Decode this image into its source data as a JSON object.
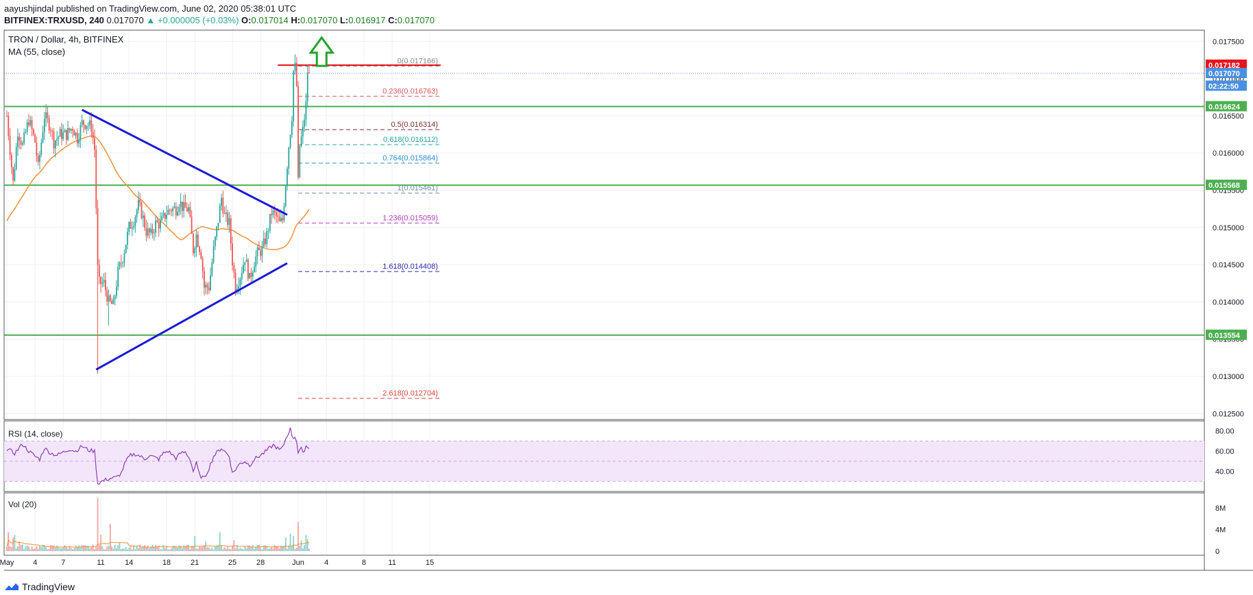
{
  "header": {
    "publisher_line": "aayushjindal published on TradingView.com, June 02, 2020 05:38:01 UTC",
    "symbol": "BITFINEX:TRXUSD, 240",
    "last": "0.017070",
    "change": "▲ +0.000005 (+0.03%)",
    "o_label": "O:",
    "o": "0.017014",
    "h_label": "H:",
    "h": "0.017070",
    "l_label": "L:",
    "l": "0.016917",
    "c_label": "C:",
    "c": "0.017070"
  },
  "main_pane": {
    "title": "TRON / Dollar, 4h, BITFINEX",
    "ma_label": "MA (55, close)"
  },
  "rsi_pane": {
    "title": "RSI (14, close)"
  },
  "vol_pane": {
    "title": "Vol (20)"
  },
  "footer": {
    "brand": "TradingView"
  },
  "colors": {
    "up": "#26a69a",
    "down": "#ef5350",
    "ma": "#f0913c",
    "support": "#4caf50",
    "trendline": "#1a1ad6",
    "resistance": "#e8141e",
    "arrow": "#22a22a",
    "rsi": "#8e3db5"
  },
  "chart_data": {
    "type": "candlestick",
    "price_axis_ticks": [
      "0.017500",
      "0.017000",
      "0.016500",
      "0.016000",
      "0.015500",
      "0.015000",
      "0.014500",
      "0.014000",
      "0.013500",
      "0.013000",
      "0.012500"
    ],
    "price_ylim": [
      0.01242,
      0.01765
    ],
    "price_tags": [
      {
        "label": "0.017182",
        "value": 0.017182,
        "color": "#e8141e"
      },
      {
        "label": "0.017070",
        "value": 0.01707,
        "color": "#4a90e2"
      },
      {
        "label": "02:22:50",
        "value": 0.0169,
        "color": "#4a90e2"
      },
      {
        "label": "0.016624",
        "value": 0.016624,
        "color": "#4caf50"
      },
      {
        "label": "0.015568",
        "value": 0.015568,
        "color": "#4caf50"
      },
      {
        "label": "0.013554",
        "value": 0.013554,
        "color": "#4caf50"
      }
    ],
    "time_ticks": [
      {
        "label": "May",
        "t": 0
      },
      {
        "label": "4",
        "t": 18
      },
      {
        "label": "7",
        "t": 36
      },
      {
        "label": "11",
        "t": 60
      },
      {
        "label": "14",
        "t": 78
      },
      {
        "label": "18",
        "t": 102
      },
      {
        "label": "21",
        "t": 120
      },
      {
        "label": "25",
        "t": 144
      },
      {
        "label": "28",
        "t": 162
      },
      {
        "label": "Jun",
        "t": 186
      },
      {
        "label": "4",
        "t": 204
      },
      {
        "label": "8",
        "t": 228
      },
      {
        "label": "11",
        "t": 246
      },
      {
        "label": "15",
        "t": 270
      }
    ],
    "horizontal_levels": [
      {
        "name": "support-0.016624",
        "value": 0.016624,
        "color": "#4caf50"
      },
      {
        "name": "support-0.015568",
        "value": 0.015568,
        "color": "#4caf50"
      },
      {
        "name": "support-0.013554",
        "value": 0.013554,
        "color": "#4caf50"
      }
    ],
    "resistance_line": {
      "value": 0.01718,
      "t_start": 173,
      "t_end": 277
    },
    "trendlines": [
      {
        "name": "upper-trendline",
        "t1": 48,
        "p1": 0.01658,
        "t2": 179,
        "p2": 0.01517
      },
      {
        "name": "lower-trendline",
        "t1": 57,
        "p1": 0.01309,
        "t2": 179,
        "p2": 0.01452
      }
    ],
    "fibonacci": {
      "t_start": 186,
      "t_end": 277,
      "levels": [
        {
          "label": "0(0.017166)",
          "value": 0.017166,
          "color": "#888888"
        },
        {
          "label": "0.236(0.016763)",
          "value": 0.016763,
          "color": "#e05a5a"
        },
        {
          "label": "0.5(0.016314)",
          "value": 0.016314,
          "color": "#7a2e2e"
        },
        {
          "label": "0.618(0.016112)",
          "value": 0.016112,
          "color": "#26a69a"
        },
        {
          "label": "0.764(0.015864)",
          "value": 0.015864,
          "color": "#2e8bd6"
        },
        {
          "label": "1(0.015461)",
          "value": 0.015461,
          "color": "#6b8ca8"
        },
        {
          "label": "1.236(0.015059)",
          "value": 0.015059,
          "color": "#b03dc0"
        },
        {
          "label": "1.618(0.014408)",
          "value": 0.014408,
          "color": "#2a2ab0"
        },
        {
          "label": "2.618(0.012704)",
          "value": 0.012704,
          "color": "#e0453a"
        }
      ]
    },
    "arrow": {
      "t": 201,
      "from": 0.01717,
      "to": 0.01755
    },
    "anchors": [
      [
        0,
        0.0165
      ],
      [
        4,
        0.0156
      ],
      [
        7,
        0.0163
      ],
      [
        10,
        0.0161
      ],
      [
        14,
        0.01645
      ],
      [
        18,
        0.01615
      ],
      [
        20,
        0.0158
      ],
      [
        24,
        0.0165
      ],
      [
        28,
        0.01635
      ],
      [
        30,
        0.01615
      ],
      [
        34,
        0.01625
      ],
      [
        38,
        0.01625
      ],
      [
        42,
        0.01635
      ],
      [
        45,
        0.0162
      ],
      [
        48,
        0.0164
      ],
      [
        51,
        0.0164
      ],
      [
        54,
        0.01635
      ],
      [
        56,
        0.01605
      ],
      [
        58,
        0.0145
      ],
      [
        59,
        0.01425
      ],
      [
        62,
        0.01425
      ],
      [
        65,
        0.014
      ],
      [
        68,
        0.01395
      ],
      [
        71,
        0.0144
      ],
      [
        74,
        0.0146
      ],
      [
        78,
        0.015
      ],
      [
        81,
        0.0151
      ],
      [
        84,
        0.0153
      ],
      [
        86,
        0.0152
      ],
      [
        89,
        0.01495
      ],
      [
        92,
        0.0149
      ],
      [
        95,
        0.01505
      ],
      [
        98,
        0.01505
      ],
      [
        102,
        0.0152
      ],
      [
        105,
        0.01525
      ],
      [
        108,
        0.01525
      ],
      [
        110,
        0.01535
      ],
      [
        113,
        0.01525
      ],
      [
        116,
        0.01525
      ],
      [
        119,
        0.0147
      ],
      [
        121,
        0.0149
      ],
      [
        124,
        0.01465
      ],
      [
        126,
        0.0142
      ],
      [
        129,
        0.0142
      ],
      [
        132,
        0.0147
      ],
      [
        135,
        0.0151
      ],
      [
        137,
        0.0154
      ],
      [
        139,
        0.01515
      ],
      [
        142,
        0.01505
      ],
      [
        144,
        0.01455
      ],
      [
        146,
        0.0142
      ],
      [
        149,
        0.01435
      ],
      [
        152,
        0.0146
      ],
      [
        155,
        0.0143
      ],
      [
        158,
        0.01455
      ],
      [
        160,
        0.01465
      ],
      [
        163,
        0.0147
      ],
      [
        166,
        0.0149
      ],
      [
        169,
        0.0152
      ],
      [
        172,
        0.01515
      ],
      [
        174,
        0.01505
      ],
      [
        176,
        0.0151
      ],
      [
        178,
        0.0156
      ],
      [
        180,
        0.0161
      ],
      [
        182,
        0.0165
      ],
      [
        183,
        0.0171
      ],
      [
        184,
        0.01715
      ],
      [
        185,
        0.0169
      ],
      [
        186,
        0.0156
      ],
      [
        187,
        0.0161
      ],
      [
        189,
        0.0163
      ],
      [
        191,
        0.01665
      ],
      [
        192,
        0.0171
      ],
      [
        193,
        0.01707
      ]
    ],
    "rsi": {
      "ylim": [
        20,
        90
      ],
      "ticks": [
        "80.00",
        "60.00",
        "40.00"
      ],
      "band": [
        30,
        70
      ],
      "anchors": [
        [
          0,
          62
        ],
        [
          5,
          58
        ],
        [
          10,
          67
        ],
        [
          14,
          60
        ],
        [
          18,
          55
        ],
        [
          21,
          52
        ],
        [
          24,
          63
        ],
        [
          28,
          58
        ],
        [
          32,
          56
        ],
        [
          36,
          59
        ],
        [
          40,
          62
        ],
        [
          44,
          60
        ],
        [
          48,
          65
        ],
        [
          52,
          61
        ],
        [
          56,
          60
        ],
        [
          58,
          28
        ],
        [
          62,
          31
        ],
        [
          66,
          33
        ],
        [
          70,
          34
        ],
        [
          73,
          38
        ],
        [
          76,
          50
        ],
        [
          79,
          56
        ],
        [
          82,
          57
        ],
        [
          85,
          55
        ],
        [
          88,
          52
        ],
        [
          91,
          56
        ],
        [
          94,
          54
        ],
        [
          97,
          52
        ],
        [
          100,
          58
        ],
        [
          103,
          60
        ],
        [
          106,
          56
        ],
        [
          108,
          53
        ],
        [
          111,
          58
        ],
        [
          114,
          59
        ],
        [
          117,
          52
        ],
        [
          119,
          40
        ],
        [
          121,
          48
        ],
        [
          123,
          36
        ],
        [
          126,
          33
        ],
        [
          129,
          43
        ],
        [
          132,
          55
        ],
        [
          135,
          60
        ],
        [
          137,
          63
        ],
        [
          139,
          60
        ],
        [
          142,
          55
        ],
        [
          144,
          38
        ],
        [
          146,
          42
        ],
        [
          149,
          48
        ],
        [
          152,
          50
        ],
        [
          155,
          46
        ],
        [
          158,
          52
        ],
        [
          161,
          55
        ],
        [
          164,
          58
        ],
        [
          167,
          62
        ],
        [
          170,
          66
        ],
        [
          172,
          64
        ],
        [
          174,
          61
        ],
        [
          176,
          63
        ],
        [
          178,
          72
        ],
        [
          180,
          79
        ],
        [
          181,
          82
        ],
        [
          182,
          76
        ],
        [
          183,
          73
        ],
        [
          184,
          75
        ],
        [
          185,
          70
        ],
        [
          186,
          58
        ],
        [
          188,
          62
        ],
        [
          190,
          60
        ],
        [
          191,
          65
        ],
        [
          193,
          64
        ]
      ]
    },
    "volume": {
      "ylim": [
        0,
        10000000
      ],
      "ticks": [
        "8M",
        "4M",
        "0"
      ],
      "spikes": [
        [
          1,
          3500000
        ],
        [
          4,
          2500000
        ],
        [
          5,
          3000000
        ],
        [
          8,
          1800000
        ],
        [
          10,
          1200000
        ],
        [
          58,
          9800000
        ],
        [
          60,
          3000000
        ],
        [
          66,
          5000000
        ],
        [
          72,
          1500000
        ],
        [
          120,
          2800000
        ],
        [
          127,
          1800000
        ],
        [
          136,
          3500000
        ],
        [
          145,
          2000000
        ],
        [
          178,
          2500000
        ],
        [
          181,
          3200000
        ],
        [
          183,
          2800000
        ],
        [
          186,
          5400000
        ],
        [
          188,
          2000000
        ],
        [
          191,
          3000000
        ],
        [
          192,
          2200000
        ]
      ]
    }
  }
}
